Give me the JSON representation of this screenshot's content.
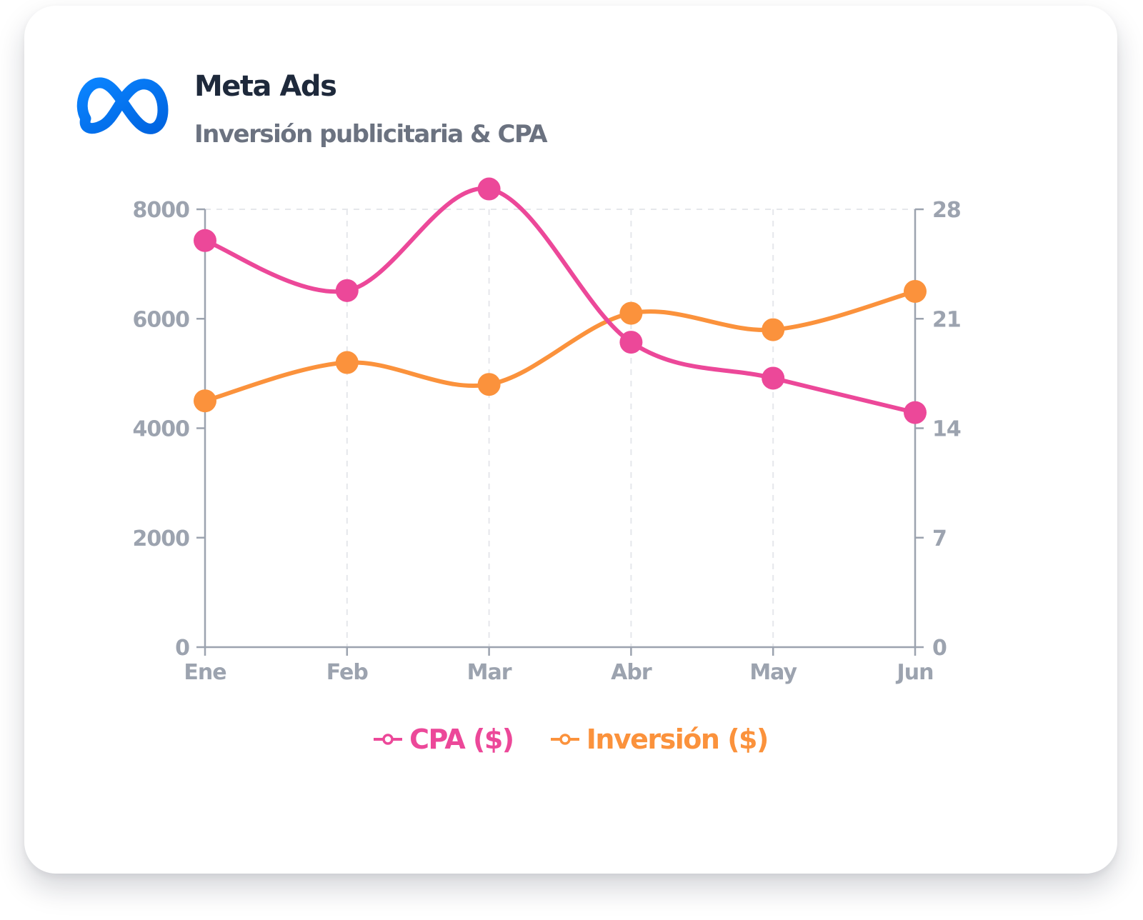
{
  "header": {
    "title": "Meta Ads",
    "subtitle": "Inversión publicitaria & CPA",
    "logo_icon": "meta-infinity-logo"
  },
  "colors": {
    "cpa": "#ec4899",
    "inversion": "#fb923c",
    "axis": "#9ca3af",
    "grid": "#e5e7eb",
    "logo": "#0a7cff"
  },
  "chart_data": {
    "type": "line",
    "categories": [
      "Ene",
      "Feb",
      "Mar",
      "Abr",
      "May",
      "Jun"
    ],
    "series": [
      {
        "name": "CPA ($)",
        "axis": "right",
        "color": "#ec4899",
        "values": [
          26.0,
          22.8,
          29.3,
          19.5,
          17.2,
          15.0
        ]
      },
      {
        "name": "Inversión ($)",
        "axis": "left",
        "color": "#fb923c",
        "values": [
          4500,
          5200,
          4800,
          6100,
          5800,
          6500
        ]
      }
    ],
    "y_left": {
      "min": 0,
      "max": 8000,
      "ticks": [
        0,
        2000,
        4000,
        6000,
        8000
      ]
    },
    "y_right": {
      "min": 0,
      "max": 28,
      "ticks": [
        0,
        7,
        14,
        21,
        28
      ]
    },
    "grid": "vertical-dashed",
    "legend_position": "bottom-center"
  }
}
